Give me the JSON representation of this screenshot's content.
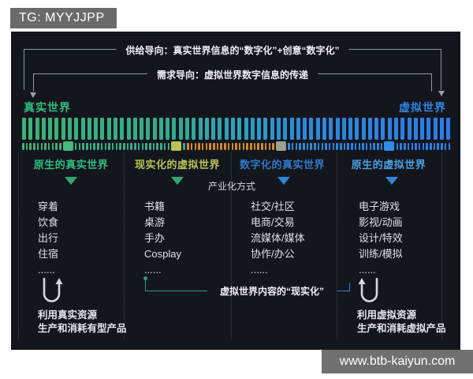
{
  "badges": {
    "tg": "TG: MYYJJPP",
    "watermark": "www.btb-kaiyun.com"
  },
  "flows": {
    "supply": "供给导向：真实世界信息的“数字化”+创意“数字化”",
    "demand": "需求导向：虚拟世界数字信息的传递"
  },
  "world_labels": {
    "real": "真实世界",
    "real_color": "#2fbd7f",
    "virtual": "虚拟世界",
    "virtual_color": "#2e86e0"
  },
  "spectrum": {
    "bar_count": 66,
    "dash_count": 115,
    "gradient_stops": [
      [
        0,
        "#3fb076"
      ],
      [
        0.35,
        "#35aa8e"
      ],
      [
        0.5,
        "#2fa0bc"
      ],
      [
        0.65,
        "#2d8ad6"
      ],
      [
        1,
        "#2c7ce8"
      ]
    ],
    "orange_range": [
      0.38,
      0.588
    ],
    "orange_color": "#cf8a2e",
    "markers": [
      {
        "pos": 0.108,
        "color": "#44b87e"
      },
      {
        "pos": 0.362,
        "color": "#b9c356"
      },
      {
        "pos": 0.607,
        "color": "#98a492"
      },
      {
        "pos": 0.857,
        "color": "#2f8ce8"
      }
    ]
  },
  "labels": {
    "industrialization": "产业化方式"
  },
  "realization": {
    "label": "虚拟世界内容的“现实化”",
    "left_color": "#2f9d72",
    "right_color": "#2e7fd6"
  },
  "columns": [
    {
      "title": "原生的真实世界",
      "color": "#2fbd7f",
      "arrow_color": "#2fa876",
      "items": [
        "穿着",
        "饮食",
        "出行",
        "住宿",
        "......"
      ]
    },
    {
      "title": "现实化的虚拟世界",
      "color": "#b9c356",
      "arrow_color": "#2fa876",
      "items": [
        "书籍",
        "桌游",
        "手办",
        "Cosplay",
        "......"
      ]
    },
    {
      "title": "数字化的真实世界",
      "color": "#3178c8",
      "arrow_color": "#2e86d8",
      "items": [
        "社交/社区",
        "电商/交易",
        "流媒体/媒体",
        "协作/办公",
        "......"
      ]
    },
    {
      "title": "原生的虚拟世界",
      "color": "#4aa0e0",
      "arrow_color": "#2e86d8",
      "items": [
        "电子游戏",
        "影视/动画",
        "设计/特效",
        "训练/模拟",
        "......"
      ]
    }
  ],
  "footnotes": {
    "left": [
      "利用真实资源",
      "生产和消耗有型产品"
    ],
    "right": [
      "利用虚拟资源",
      "生产和消耗虚拟产品"
    ]
  }
}
